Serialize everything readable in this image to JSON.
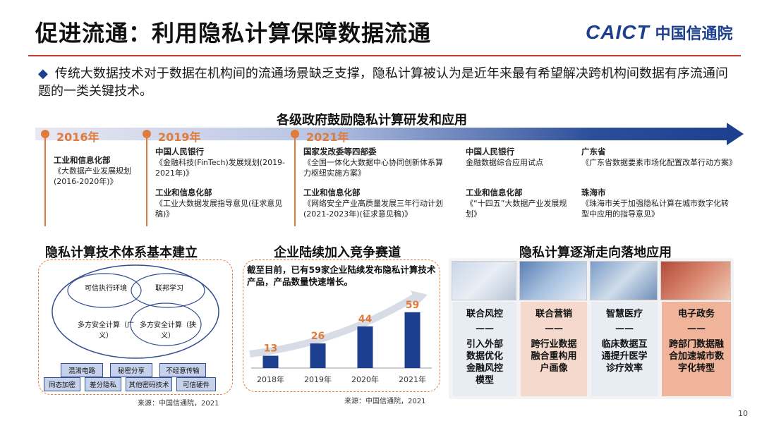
{
  "header": {
    "title": "促进流通：利用隐私计算保障数据流通",
    "logo_text": "CAICT",
    "logo_cn": "中国信通院"
  },
  "bullet": "传统大数据技术对于数据在机构间的流通场景缺乏支撑，隐私计算被认为是近年来最有希望解决跨机构间数据有序流通问题的一类关键技术。",
  "timeline": {
    "title": "各级政府鼓励隐私计算研发和应用",
    "years": [
      "2016年",
      "2019年",
      "2021年"
    ],
    "items": [
      {
        "head": "工业和信息化部",
        "body": "《大数据产业发展规划(2016-2020年)》"
      },
      {
        "head": "中国人民银行",
        "body": "《金融科技(FinTech)发展规划(2019-2021年)》"
      },
      {
        "head": "工业和信息化部",
        "body": "《工业大数据发展指导意见(征求意见稿)》"
      },
      {
        "head": "国家发改委等四部委",
        "body": "《全国一体化大数据中心协同创新体系算力枢纽实施方案》"
      },
      {
        "head": "工业和信息化部",
        "body": "《网络安全产业高质量发展三年行动计划(2021-2023年)(征求意见稿)》"
      },
      {
        "head": "中国人民银行",
        "body": "金融数据综合应用试点"
      },
      {
        "head": "工业和信息化部",
        "body": "《“十四五”大数据产业发展规划》"
      },
      {
        "head": "广东省",
        "body": "《广东省数据要素市场化配置改革行动方案》"
      },
      {
        "head": "珠海市",
        "body": "《珠海市关于加强隐私计算在城市数字化转型中应用的指导意见》"
      }
    ]
  },
  "tech_panel": {
    "title": "隐私计算技术体系基本建立",
    "venn": [
      "可信执行环境",
      "联邦学习",
      "多方安全计算（广义）",
      "多方安全计算（狭义）"
    ],
    "tags_row1": [
      "混淆电路",
      "秘密分享",
      "不经意传输"
    ],
    "tags_row2": [
      "同态加密",
      "差分隐私",
      "其他密码技术",
      "可信硬件"
    ],
    "source": "来源：中国信通院，2021"
  },
  "competition_panel": {
    "title": "企业陆续加入竞争赛道",
    "note": "截至目前，已有59家企业陆续发布隐私计算技术产品，产品数量快速增长。",
    "source": "来源：中国信通院，2021"
  },
  "chart_data": {
    "type": "bar",
    "categories": [
      "2018年",
      "2019年",
      "2020年",
      "2021年"
    ],
    "values": [
      13,
      26,
      44,
      59
    ],
    "ylim": [
      0,
      70
    ],
    "title": "",
    "xlabel": "",
    "ylabel": "",
    "bar_color": "#1d3f8f",
    "label_color": "#e07b39"
  },
  "apps_panel": {
    "title": "隐私计算逐渐走向落地应用",
    "columns": [
      {
        "head": "联合风控",
        "dash": "——",
        "body": "引入外部数据优化金融风控模型"
      },
      {
        "head": "联合营销",
        "dash": "——",
        "body": "跨行业数据融合重构用户画像"
      },
      {
        "head": "智慧医疗",
        "dash": "——",
        "body": "临床数据互通提升医学诊疗效率"
      },
      {
        "head": "电子政务",
        "dash": "——",
        "body": "跨部门数据融合加速城市数字化转型"
      }
    ]
  },
  "page_number": "10",
  "colors": {
    "accent": "#e07b39",
    "brand": "#1d3f8f",
    "title_line": "#c0392b"
  }
}
